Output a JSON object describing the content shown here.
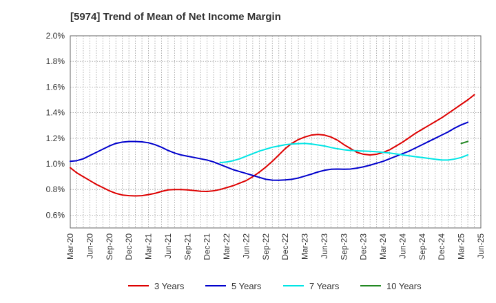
{
  "chart_data": {
    "type": "line",
    "title": "[5974]  Trend of Mean of Net Income Margin",
    "xlabel": "",
    "ylabel": "",
    "x_ticks": [
      "Mar-20",
      "Jun-20",
      "Sep-20",
      "Dec-20",
      "Mar-21",
      "Jun-21",
      "Sep-21",
      "Dec-21",
      "Mar-22",
      "Jun-22",
      "Sep-22",
      "Dec-22",
      "Mar-23",
      "Jun-23",
      "Sep-23",
      "Dec-23",
      "Mar-24",
      "Jun-24",
      "Sep-24",
      "Dec-24",
      "Mar-25",
      "Jun-25"
    ],
    "y_ticks": [
      "0.6%",
      "0.8%",
      "1.0%",
      "1.2%",
      "1.4%",
      "1.6%",
      "1.8%",
      "2.0%"
    ],
    "ylim": [
      0.5,
      2.0
    ],
    "grid": true,
    "legend_position": "bottom",
    "series": [
      {
        "name": "3 Years",
        "color": "#dd0000",
        "points": [
          [
            "Mar-20",
            0.97
          ],
          [
            "Apr-20",
            0.93
          ],
          [
            "May-20",
            0.9
          ],
          [
            "Jun-20",
            0.87
          ],
          [
            "Jul-20",
            0.84
          ],
          [
            "Aug-20",
            0.815
          ],
          [
            "Sep-20",
            0.79
          ],
          [
            "Oct-20",
            0.77
          ],
          [
            "Nov-20",
            0.757
          ],
          [
            "Dec-20",
            0.752
          ],
          [
            "Jan-21",
            0.75
          ],
          [
            "Feb-21",
            0.752
          ],
          [
            "Mar-21",
            0.76
          ],
          [
            "Apr-21",
            0.77
          ],
          [
            "May-21",
            0.785
          ],
          [
            "Jun-21",
            0.797
          ],
          [
            "Jul-21",
            0.8
          ],
          [
            "Aug-21",
            0.8
          ],
          [
            "Sep-21",
            0.797
          ],
          [
            "Oct-21",
            0.792
          ],
          [
            "Nov-21",
            0.786
          ],
          [
            "Dec-21",
            0.785
          ],
          [
            "Jan-22",
            0.79
          ],
          [
            "Feb-22",
            0.8
          ],
          [
            "Mar-22",
            0.815
          ],
          [
            "Apr-22",
            0.83
          ],
          [
            "May-22",
            0.85
          ],
          [
            "Jun-22",
            0.87
          ],
          [
            "Jul-22",
            0.9
          ],
          [
            "Aug-22",
            0.935
          ],
          [
            "Sep-22",
            0.975
          ],
          [
            "Oct-22",
            1.02
          ],
          [
            "Nov-22",
            1.07
          ],
          [
            "Dec-22",
            1.12
          ],
          [
            "Jan-23",
            1.16
          ],
          [
            "Feb-23",
            1.19
          ],
          [
            "Mar-23",
            1.21
          ],
          [
            "Apr-23",
            1.225
          ],
          [
            "May-23",
            1.23
          ],
          [
            "Jun-23",
            1.225
          ],
          [
            "Jul-23",
            1.21
          ],
          [
            "Aug-23",
            1.185
          ],
          [
            "Sep-23",
            1.15
          ],
          [
            "Oct-23",
            1.12
          ],
          [
            "Nov-23",
            1.09
          ],
          [
            "Dec-23",
            1.075
          ],
          [
            "Jan-24",
            1.07
          ],
          [
            "Feb-24",
            1.075
          ],
          [
            "Mar-24",
            1.09
          ],
          [
            "Apr-24",
            1.11
          ],
          [
            "May-24",
            1.14
          ],
          [
            "Jun-24",
            1.17
          ],
          [
            "Jul-24",
            1.205
          ],
          [
            "Aug-24",
            1.24
          ],
          [
            "Sep-24",
            1.27
          ],
          [
            "Oct-24",
            1.3
          ],
          [
            "Nov-24",
            1.33
          ],
          [
            "Dec-24",
            1.36
          ],
          [
            "Jan-25",
            1.395
          ],
          [
            "Feb-25",
            1.43
          ],
          [
            "Mar-25",
            1.465
          ],
          [
            "Apr-25",
            1.5
          ],
          [
            "May-25",
            1.54
          ]
        ]
      },
      {
        "name": "5 Years",
        "color": "#0000cc",
        "points": [
          [
            "Mar-20",
            1.02
          ],
          [
            "Apr-20",
            1.025
          ],
          [
            "May-20",
            1.04
          ],
          [
            "Jun-20",
            1.065
          ],
          [
            "Jul-20",
            1.09
          ],
          [
            "Aug-20",
            1.115
          ],
          [
            "Sep-20",
            1.14
          ],
          [
            "Oct-20",
            1.16
          ],
          [
            "Nov-20",
            1.17
          ],
          [
            "Dec-20",
            1.175
          ],
          [
            "Jan-21",
            1.175
          ],
          [
            "Feb-21",
            1.172
          ],
          [
            "Mar-21",
            1.165
          ],
          [
            "Apr-21",
            1.15
          ],
          [
            "May-21",
            1.13
          ],
          [
            "Jun-21",
            1.105
          ],
          [
            "Jul-21",
            1.085
          ],
          [
            "Aug-21",
            1.07
          ],
          [
            "Sep-21",
            1.06
          ],
          [
            "Oct-21",
            1.05
          ],
          [
            "Nov-21",
            1.04
          ],
          [
            "Dec-21",
            1.03
          ],
          [
            "Jan-22",
            1.015
          ],
          [
            "Feb-22",
            0.995
          ],
          [
            "Mar-22",
            0.975
          ],
          [
            "Apr-22",
            0.955
          ],
          [
            "May-22",
            0.94
          ],
          [
            "Jun-22",
            0.925
          ],
          [
            "Jul-22",
            0.91
          ],
          [
            "Aug-22",
            0.895
          ],
          [
            "Sep-22",
            0.88
          ],
          [
            "Oct-22",
            0.873
          ],
          [
            "Nov-22",
            0.872
          ],
          [
            "Dec-22",
            0.875
          ],
          [
            "Jan-23",
            0.88
          ],
          [
            "Feb-23",
            0.89
          ],
          [
            "Mar-23",
            0.905
          ],
          [
            "Apr-23",
            0.92
          ],
          [
            "May-23",
            0.937
          ],
          [
            "Jun-23",
            0.95
          ],
          [
            "Jul-23",
            0.958
          ],
          [
            "Aug-23",
            0.96
          ],
          [
            "Sep-23",
            0.958
          ],
          [
            "Oct-23",
            0.96
          ],
          [
            "Nov-23",
            0.967
          ],
          [
            "Dec-23",
            0.977
          ],
          [
            "Jan-24",
            0.99
          ],
          [
            "Feb-24",
            1.005
          ],
          [
            "Mar-24",
            1.02
          ],
          [
            "Apr-24",
            1.04
          ],
          [
            "May-24",
            1.06
          ],
          [
            "Jun-24",
            1.08
          ],
          [
            "Jul-24",
            1.1
          ],
          [
            "Aug-24",
            1.125
          ],
          [
            "Sep-24",
            1.15
          ],
          [
            "Oct-24",
            1.175
          ],
          [
            "Nov-24",
            1.2
          ],
          [
            "Dec-24",
            1.225
          ],
          [
            "Jan-25",
            1.25
          ],
          [
            "Feb-25",
            1.28
          ],
          [
            "Mar-25",
            1.305
          ],
          [
            "Apr-25",
            1.325
          ]
        ]
      },
      {
        "name": "7 Years",
        "color": "#00e5e5",
        "points": [
          [
            "Feb-22",
            1.01
          ],
          [
            "Mar-22",
            1.015
          ],
          [
            "Apr-22",
            1.025
          ],
          [
            "May-22",
            1.04
          ],
          [
            "Jun-22",
            1.06
          ],
          [
            "Jul-22",
            1.08
          ],
          [
            "Aug-22",
            1.1
          ],
          [
            "Sep-22",
            1.115
          ],
          [
            "Oct-22",
            1.13
          ],
          [
            "Nov-22",
            1.14
          ],
          [
            "Dec-22",
            1.15
          ],
          [
            "Jan-23",
            1.155
          ],
          [
            "Feb-23",
            1.158
          ],
          [
            "Mar-23",
            1.16
          ],
          [
            "Apr-23",
            1.155
          ],
          [
            "May-23",
            1.148
          ],
          [
            "Jun-23",
            1.14
          ],
          [
            "Jul-23",
            1.128
          ],
          [
            "Aug-23",
            1.118
          ],
          [
            "Sep-23",
            1.11
          ],
          [
            "Oct-23",
            1.105
          ],
          [
            "Nov-23",
            1.102
          ],
          [
            "Dec-23",
            1.1
          ],
          [
            "Jan-24",
            1.098
          ],
          [
            "Feb-24",
            1.095
          ],
          [
            "Mar-24",
            1.09
          ],
          [
            "Apr-24",
            1.085
          ],
          [
            "May-24",
            1.078
          ],
          [
            "Jun-24",
            1.07
          ],
          [
            "Jul-24",
            1.063
          ],
          [
            "Aug-24",
            1.056
          ],
          [
            "Sep-24",
            1.05
          ],
          [
            "Oct-24",
            1.043
          ],
          [
            "Nov-24",
            1.036
          ],
          [
            "Dec-24",
            1.03
          ],
          [
            "Jan-25",
            1.03
          ],
          [
            "Feb-25",
            1.038
          ],
          [
            "Mar-25",
            1.05
          ],
          [
            "Apr-25",
            1.07
          ]
        ]
      },
      {
        "name": "10 Years",
        "color": "#228822",
        "points": [
          [
            "Mar-25",
            1.16
          ],
          [
            "Apr-25",
            1.175
          ]
        ]
      }
    ]
  }
}
